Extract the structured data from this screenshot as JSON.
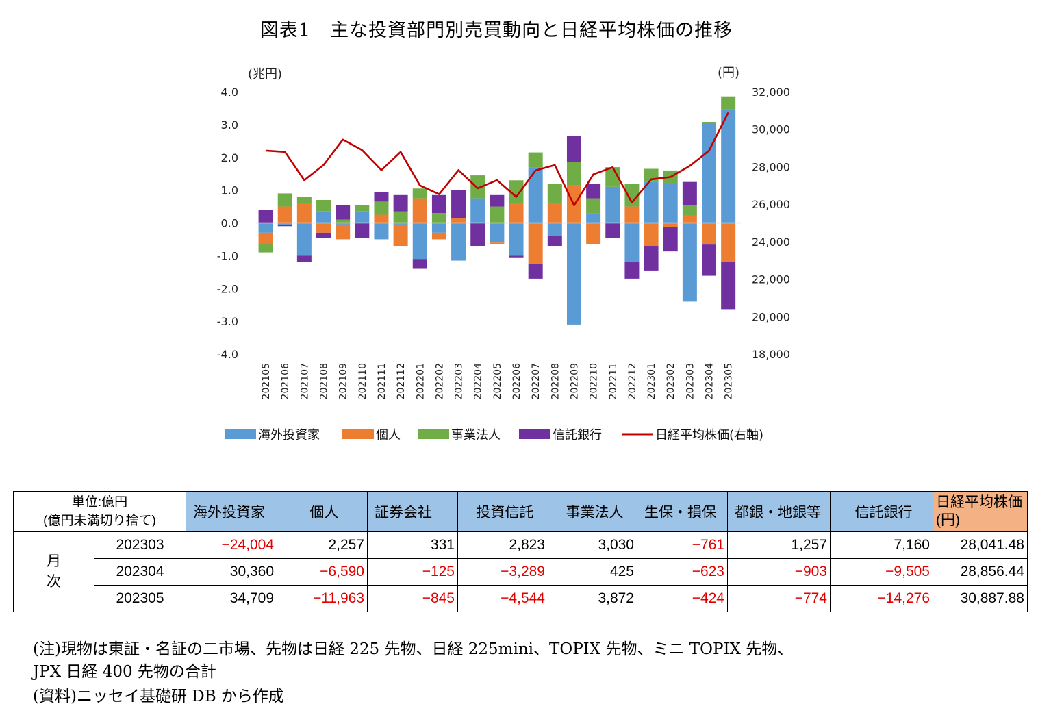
{
  "title": "図表1　主な投資部門別売買動向と日経平均株価の推移",
  "chart_data": {
    "type": "bar",
    "stacked": true,
    "left_axis_unit": "(兆円)",
    "right_axis_unit": "(円)",
    "ylim": [
      -4.0,
      4.0
    ],
    "y2lim": [
      18000,
      32000
    ],
    "yticks": [
      "4.0",
      "3.0",
      "2.0",
      "1.0",
      "0.0",
      "-1.0",
      "-2.0",
      "-3.0",
      "-4.0"
    ],
    "y2ticks": [
      "32,000",
      "30,000",
      "28,000",
      "26,000",
      "24,000",
      "22,000",
      "20,000",
      "18,000"
    ],
    "categories": [
      "202105",
      "202106",
      "202107",
      "202108",
      "202109",
      "202110",
      "202111",
      "202112",
      "202201",
      "202202",
      "202203",
      "202204",
      "202205",
      "202206",
      "202207",
      "202208",
      "202209",
      "202210",
      "202211",
      "202212",
      "202301",
      "202302",
      "202303",
      "202304",
      "202305"
    ],
    "series": [
      {
        "name": "海外投資家",
        "color": "#5b9bd5",
        "values": [
          -0.3,
          -0.05,
          -1.0,
          0.35,
          -0.05,
          0.35,
          -0.5,
          -0.05,
          -1.1,
          -0.3,
          -1.15,
          0.75,
          -0.6,
          -1.0,
          1.7,
          -0.4,
          -3.1,
          0.3,
          1.1,
          -1.2,
          1.25,
          1.2,
          -2.4,
          3.04,
          3.47
        ]
      },
      {
        "name": "個人",
        "color": "#ed7d31",
        "values": [
          -0.35,
          0.5,
          0.6,
          -0.3,
          -0.45,
          0.0,
          0.25,
          -0.65,
          0.75,
          -0.2,
          0.15,
          0.0,
          -0.05,
          0.6,
          -1.25,
          0.6,
          1.15,
          -0.65,
          0.0,
          0.5,
          -0.7,
          -0.12,
          0.23,
          -0.66,
          -1.2
        ]
      },
      {
        "name": "事業法人",
        "color": "#70ad47",
        "values": [
          -0.25,
          0.4,
          0.2,
          0.35,
          0.1,
          0.2,
          0.4,
          0.35,
          0.3,
          0.3,
          0.0,
          0.7,
          0.5,
          0.7,
          0.45,
          0.6,
          0.7,
          0.45,
          0.6,
          0.7,
          0.4,
          0.4,
          0.3,
          0.04,
          0.39
        ]
      },
      {
        "name": "信託銀行",
        "color": "#7030a0",
        "values": [
          0.4,
          -0.05,
          -0.2,
          -0.15,
          0.45,
          -0.45,
          0.3,
          0.5,
          -0.3,
          0.55,
          0.85,
          -0.7,
          0.35,
          -0.05,
          -0.45,
          -0.3,
          0.8,
          0.45,
          -0.45,
          -0.5,
          -0.75,
          -0.75,
          0.72,
          -0.95,
          -1.43
        ]
      }
    ],
    "line": {
      "name": "日経平均株価(右軸)",
      "color": "#c00000",
      "values": [
        28860,
        28790,
        27280,
        28090,
        29450,
        28890,
        27820,
        28790,
        27000,
        26530,
        27820,
        26850,
        27280,
        26390,
        27800,
        28090,
        25940,
        27590,
        27970,
        26090,
        27330,
        27450,
        28041,
        28856,
        30888
      ]
    },
    "legend": [
      "海外投資家",
      "個人",
      "事業法人",
      "信託銀行",
      "日経平均株価(右軸)"
    ],
    "legend_position": "bottom",
    "grid": false
  },
  "table": {
    "unit_label_1": "単位:億円",
    "unit_label_2": "(億円未満切り捨て)",
    "headers": [
      "海外投資家",
      "個人",
      "証券会社",
      "投資信託",
      "事業法人",
      "生保・損保",
      "都銀・地銀等",
      "信託銀行"
    ],
    "nikkei_header_1": "日経平均株価",
    "nikkei_header_2": "(円)",
    "row_group_1": "月",
    "row_group_2": "次",
    "rows": [
      {
        "month": "202303",
        "values": [
          "−24,004",
          "2,257",
          "331",
          "2,823",
          "3,030",
          "−761",
          "1,257",
          "7,160"
        ],
        "nikkei": "28,041.48"
      },
      {
        "month": "202304",
        "values": [
          "30,360",
          "−6,590",
          "−125",
          "−3,289",
          "425",
          "−623",
          "−903",
          "−9,505"
        ],
        "nikkei": "28,856.44"
      },
      {
        "month": "202305",
        "values": [
          "34,709",
          "−11,963",
          "−845",
          "−4,544",
          "3,872",
          "−424",
          "−774",
          "−14,276"
        ],
        "nikkei": "30,887.88"
      }
    ]
  },
  "notes": {
    "line1": "(注)現物は東証・名証の二市場、先物は日経 225 先物、日経 225mini、TOPIX 先物、ミニ TOPIX 先物、",
    "line2": "JPX 日経 400 先物の合計",
    "line3": "(資料)ニッセイ基礎研 DB から作成"
  }
}
